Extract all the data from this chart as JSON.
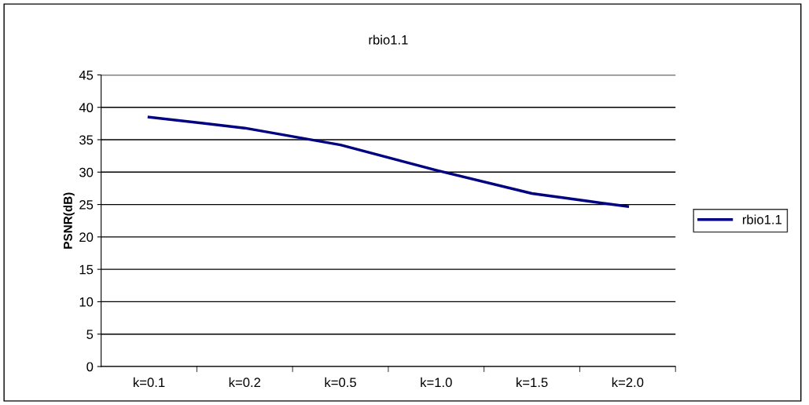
{
  "chart_data": {
    "type": "line",
    "title": "rbio1.1",
    "ylabel": "PSNR(dB)",
    "categories": [
      "k=0.1",
      "k=0.2",
      "k=0.5",
      "k=1.0",
      "k=1.5",
      "k=2.0"
    ],
    "series": [
      {
        "name": "rbio1.1",
        "color": "#000080",
        "values": [
          38.5,
          36.8,
          34.2,
          30.3,
          26.7,
          24.7
        ]
      }
    ],
    "ylim": [
      0,
      45
    ],
    "yticks": [
      0,
      5,
      10,
      15,
      20,
      25,
      30,
      35,
      40,
      45
    ],
    "grid": "y",
    "legend": "right",
    "marker": "none",
    "line_style": "solid"
  }
}
